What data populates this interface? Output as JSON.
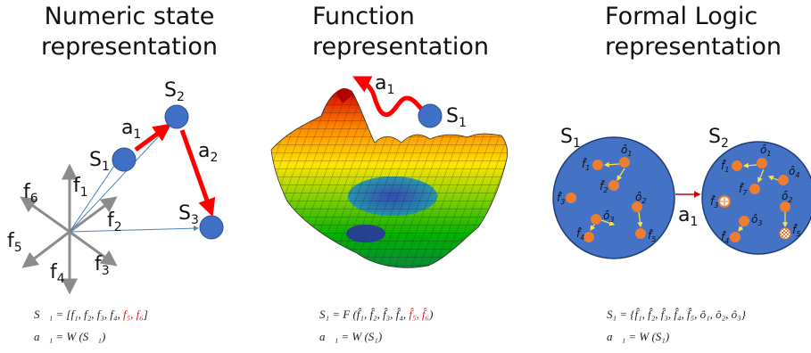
{
  "panels": {
    "numeric": {
      "title_line1": "Numeric state",
      "title_line2": "representation",
      "labels": {
        "s1": "S",
        "s1_sub": "1",
        "s2": "S",
        "s2_sub": "2",
        "s3": "S",
        "s3_sub": "3",
        "a1": "a",
        "a1_sub": "1",
        "a2": "a",
        "a2_sub": "2",
        "f1": "f",
        "f1_sub": "1",
        "f2": "f",
        "f2_sub": "2",
        "f3": "f",
        "f3_sub": "3",
        "f4": "f",
        "f4_sub": "4",
        "f5": "f",
        "f5_sub": "5",
        "f6": "f",
        "f6_sub": "6"
      },
      "eq1_main": "S⃗₁ = [f₁, f₂, f₃, f₄, ",
      "eq1_red": "f₅, f₆",
      "eq1_end": "]",
      "eq2": "a⃗₁ = W (S⃗₁)"
    },
    "function": {
      "title_line1": "Function",
      "title_line2": "representation",
      "labels": {
        "a1": "a",
        "a1_sub": "1",
        "s1": "S",
        "s1_sub": "1"
      },
      "eq1_main": "S₁ = F (f̂₁, f̂₂, f̂₃, f̂₄, ",
      "eq1_red": "f̂₅, f̂₆",
      "eq1_end": ")",
      "eq2": "a⃗₁ = W (S₁)"
    },
    "logic": {
      "title_line1": "Formal Logic",
      "title_line2": "representation",
      "labels": {
        "s1": "S",
        "s1_sub": "1",
        "s2": "S",
        "s2_sub": "2",
        "a1": "a",
        "a1_sub": "1",
        "f1": "f̂",
        "f1_sub": "1",
        "f2": "f̂",
        "f2_sub": "2",
        "f3": "f̂",
        "f3_sub": "3",
        "f4": "f̂",
        "f4_sub": "4",
        "f5": "f̂",
        "f5_sub": "5",
        "f7": "f̂",
        "f7_sub": "7",
        "o1": "ô",
        "o1_sub": "1",
        "o2": "ô",
        "o2_sub": "2",
        "o3": "ô",
        "o3_sub": "3",
        "o4": "ô",
        "o4_sub": "4"
      },
      "eq1": "S₁ = {f̂₁, f̂₂, f̂₃, f̂₄, f̂₅, ô₁, ô₂, ô₃}",
      "eq2": "a⃗₁ = W (S₁)"
    }
  },
  "colors": {
    "node_blue": "#3f6fc6",
    "circle_blue": "#4472c4",
    "arrow_red": "#ff0000",
    "axis_gray": "#8c8c8c",
    "feature_orange": "#ed7d31",
    "yellow_link": "#ffe14d"
  }
}
